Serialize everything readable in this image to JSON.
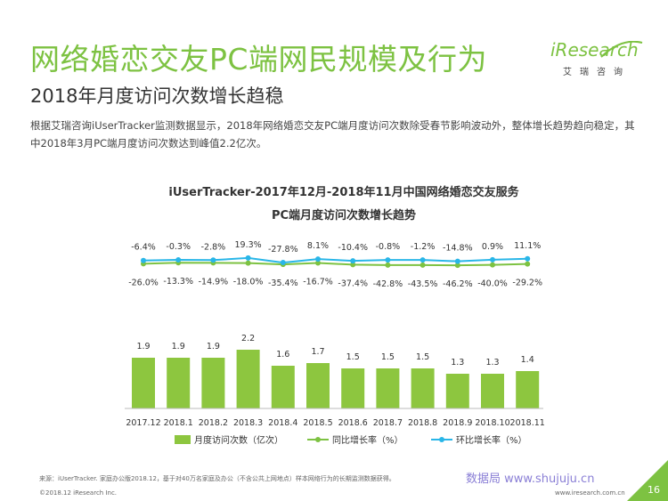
{
  "header": {
    "title": "网络婚恋交友PC端网民规模及行为",
    "subtitle": "2018年月度访问次数增长趋稳",
    "description": "根据艾瑞咨询iUserTracker监测数据显示，2018年网络婚恋交友PC端月度访问次数除受春节影响波动外，整体增长趋势趋向稳定，其中2018年3月PC端月度访问次数达到峰值2.2亿次。"
  },
  "logo": {
    "brand": "iResearch",
    "sub": "艾瑞咨询"
  },
  "chart_data": {
    "type": "bar",
    "title_line1": "iUserTracker-2017年12月-2018年11月中国网络婚恋交友服务",
    "title_line2": "PC端月度访问次数增长趋势",
    "categories": [
      "2017.12",
      "2018.1",
      "2018.2",
      "2018.3",
      "2018.4",
      "2018.5",
      "2018.6",
      "2018.7",
      "2018.8",
      "2018.9",
      "2018.10",
      "2018.11"
    ],
    "series": [
      {
        "name": "月度访问次数（亿次）",
        "type": "bar",
        "color": "#8dc63f",
        "values": [
          1.9,
          1.9,
          1.9,
          2.2,
          1.6,
          1.7,
          1.5,
          1.5,
          1.5,
          1.3,
          1.3,
          1.4
        ],
        "labels": [
          "1.9",
          "1.9",
          "1.9",
          "2.2",
          "1.6",
          "1.7",
          "1.5",
          "1.5",
          "1.5",
          "1.3",
          "1.3",
          "1.4"
        ]
      },
      {
        "name": "同比增长率（%）",
        "type": "line",
        "color": "#7dc242",
        "values": [
          -26.0,
          -13.3,
          -14.9,
          -18.0,
          -35.4,
          -16.7,
          -37.4,
          -42.8,
          -43.5,
          -46.2,
          -40.0,
          -29.2
        ],
        "labels": [
          "-26.0%",
          "-13.3%",
          "-14.9%",
          "-18.0%",
          "-35.4%",
          "-16.7%",
          "-37.4%",
          "-42.8%",
          "-43.5%",
          "-46.2%",
          "-40.0%",
          "-29.2%"
        ]
      },
      {
        "name": "环比增长率（%）",
        "type": "line",
        "color": "#29b6e8",
        "values": [
          -6.4,
          -0.3,
          -2.8,
          19.3,
          -27.8,
          8.1,
          -10.4,
          -0.8,
          -1.2,
          -14.8,
          0.9,
          11.1
        ],
        "labels": [
          "-6.4%",
          "-0.3%",
          "-2.8%",
          "19.3%",
          "-27.8%",
          "8.1%",
          "-10.4%",
          "-0.8%",
          "-1.2%",
          "-14.8%",
          "0.9%",
          "11.1%"
        ]
      }
    ]
  },
  "footer": {
    "source": "来源：iUserTracker. 家庭办公版2018.12，基于对40万名家庭及办公（不含公共上网地点）样本网络行为的长期监测数据获得。",
    "watermark": "数据局 www.shujuju.cn",
    "copyright": "©2018.12 iResearch Inc.",
    "website": "www.iresearch.com.cn",
    "page": "16"
  },
  "colors": {
    "accent": "#7dc242",
    "bar": "#8dc63f",
    "mom_line": "#29b6e8"
  }
}
